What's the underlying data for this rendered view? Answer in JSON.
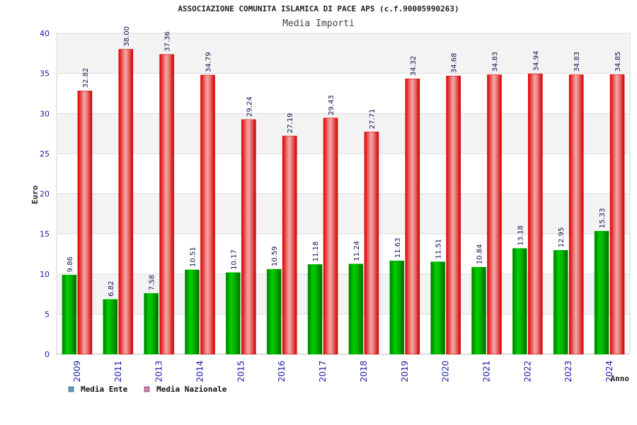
{
  "chart_data": {
    "type": "bar",
    "title": "ASSOCIAZIONE COMUNITA ISLAMICA DI PACE APS (c.f.90005990263)",
    "subtitle": "Media Importi",
    "xlabel": "Anno",
    "ylabel": "Euro",
    "ylim": [
      0,
      40
    ],
    "yticks": [
      0,
      5,
      10,
      15,
      20,
      25,
      30,
      35,
      40
    ],
    "grid": true,
    "legend_position": "bottom-left",
    "categories": [
      "2009",
      "2011",
      "2013",
      "2014",
      "2015",
      "2016",
      "2017",
      "2018",
      "2019",
      "2020",
      "2021",
      "2022",
      "2023",
      "2024"
    ],
    "series": [
      {
        "name": "Media Ente",
        "legend_color": "#5b9bd5",
        "bar_color": "#00b400",
        "values": [
          9.86,
          6.82,
          7.58,
          10.51,
          10.17,
          10.59,
          11.18,
          11.24,
          11.63,
          11.51,
          10.84,
          13.18,
          12.95,
          15.33
        ],
        "labels": [
          "9.86",
          "6.82",
          "7.58",
          "10.51",
          "10.17",
          "10.59",
          "11.18",
          "11.24",
          "11.63",
          "11.51",
          "10.84",
          "13.18",
          "12.95",
          "15.33"
        ]
      },
      {
        "name": "Media Nazionale",
        "legend_color": "#e27ab0",
        "bar_color": "#e00000",
        "values": [
          32.82,
          38.0,
          37.36,
          34.79,
          29.24,
          27.19,
          29.43,
          27.71,
          34.32,
          34.68,
          34.83,
          34.94,
          34.83,
          34.85
        ],
        "labels": [
          "32.82",
          "38.00",
          "37.36",
          "34.79",
          "29.24",
          "27.19",
          "29.43",
          "27.71",
          "34.32",
          "34.68",
          "34.83",
          "34.94",
          "34.83",
          "34.85"
        ]
      }
    ]
  }
}
